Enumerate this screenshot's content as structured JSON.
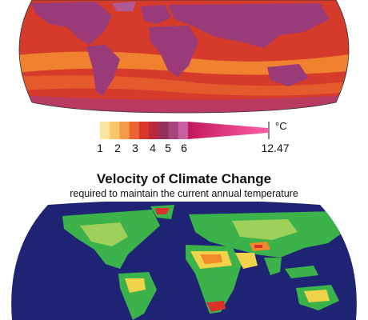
{
  "legend": {
    "tick_labels": [
      "1",
      "2",
      "3",
      "4",
      "5",
      "6"
    ],
    "max_label": "12.47",
    "unit": "°C",
    "colors": [
      "#fde5a0",
      "#fbc66a",
      "#f59a46",
      "#ec6233",
      "#d9362b",
      "#b8283f",
      "#96315c",
      "#a4457e",
      "#c95fa0"
    ],
    "tail_color_start": "#c2185b",
    "tail_color_end": "#ff5fa8"
  },
  "bottom_panel": {
    "title": "Velocity of Climate Change",
    "subtitle": "required to maintain the current annual temperature"
  },
  "colors": {
    "ocean_warm": "#d63a2a",
    "ocean_band": "#f0812f",
    "land_warm": "#9b3a78",
    "ocean_dark": "#1e2473",
    "land_green": "#3bb34a",
    "land_light": "#9fd05a",
    "land_yellow": "#f1d24b",
    "land_orange": "#f08a2a",
    "land_red": "#d8322b"
  }
}
